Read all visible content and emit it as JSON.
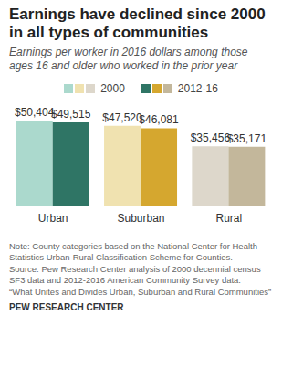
{
  "chart_data": {
    "type": "bar",
    "title": "Earnings have declined since 2000 in all types of communities",
    "subtitle": "Earnings per worker in 2016 dollars among those ages 16 and older who worked in the prior year",
    "categories": [
      "Urban",
      "Suburban",
      "Rural"
    ],
    "series": [
      {
        "name": "2000",
        "values": [
          50404,
          47520,
          35456
        ],
        "value_labels": [
          "$50,404",
          "$47,520",
          "$35,456"
        ],
        "colors": [
          "#abd9cd",
          "#f0e2b0",
          "#ddd7cb"
        ]
      },
      {
        "name": "2012-16",
        "values": [
          49515,
          46081,
          35171
        ],
        "value_labels": [
          "$49,515",
          "$46,081",
          "$35,171"
        ],
        "colors": [
          "#2f7565",
          "#d5a72f",
          "#c3b79b"
        ]
      }
    ],
    "ylim": [
      0,
      56000
    ],
    "data_labels": true,
    "tick_labels": "x",
    "grid": false,
    "notes": [
      "Note: County categories based on the National Center for Health Statistics Urban-Rural Classification Scheme for Counties.",
      "Source: Pew Research Center analysis of 2000 decennial census SF3 data and 2012-2016  American Community Survey data.",
      "“What Unites and Divides Urban, Suburban and Rural Communities”",
      "PEW RESEARCH CENTER"
    ]
  }
}
